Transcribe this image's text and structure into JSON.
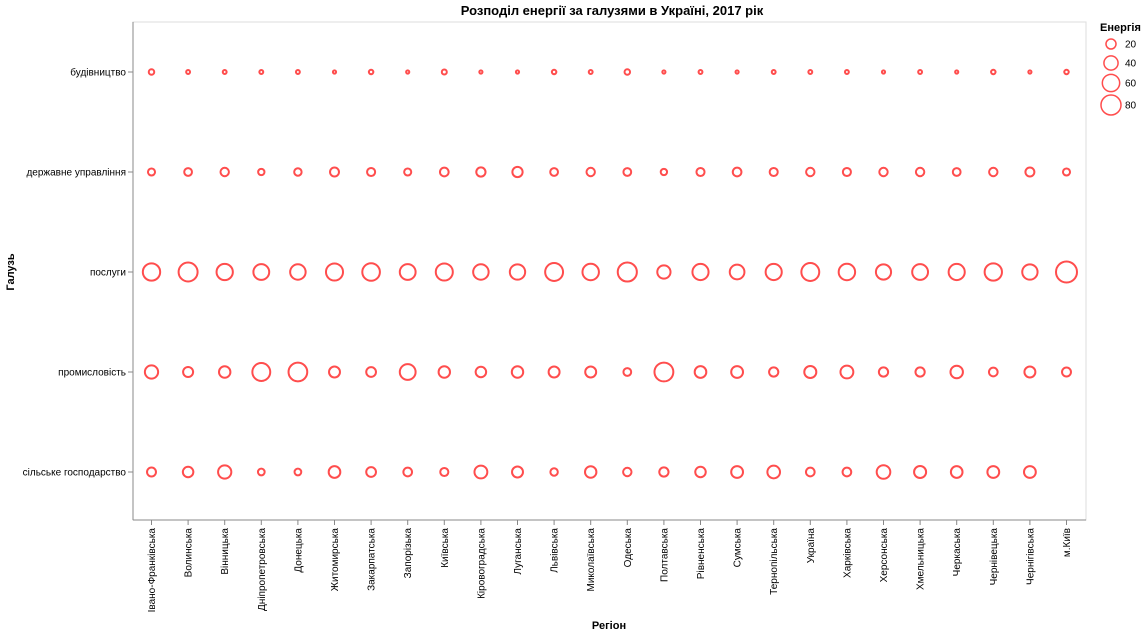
{
  "chart_data": {
    "type": "scatter",
    "title": "Розподіл енергії за галузями в Україні, 2017 рік",
    "xlabel": "Регіон",
    "ylabel": "Галузь",
    "grid": false,
    "legend_position": "top-right",
    "mark_color": "#ff4d4d",
    "x_categories": [
      "Івано-Франківська",
      "Волинська",
      "Вінницька",
      "Дніпропетровська",
      "Донецька",
      "Житомирська",
      "Закарпатська",
      "Запорізька",
      "Київська",
      "Кіровоградська",
      "Луганська",
      "Львівська",
      "Миколаївська",
      "Одеська",
      "Полтавська",
      "Рівненська",
      "Сумська",
      "Тернопільська",
      "Україна",
      "Харківська",
      "Херсонська",
      "Хмельницька",
      "Черкаська",
      "Чернівецька",
      "Чернігівська",
      "м.Київ"
    ],
    "y_categories": [
      "будівництво",
      "державне управління",
      "послуги",
      "промисловість",
      "сільське господарство"
    ],
    "size_legend": {
      "title": "Енергія",
      "values": [
        20,
        40,
        60,
        80
      ]
    },
    "series": [
      {
        "name": "будівництво",
        "values": [
          6,
          3,
          3,
          3,
          3,
          2,
          4,
          2,
          5,
          2,
          2,
          4,
          3,
          6,
          2,
          3,
          2,
          3,
          3,
          3,
          2,
          3,
          2,
          4,
          2,
          4
        ]
      },
      {
        "name": "державне управління",
        "values": [
          10,
          12,
          14,
          8,
          11,
          16,
          13,
          10,
          15,
          17,
          21,
          12,
          14,
          12,
          8,
          13,
          15,
          13,
          14,
          13,
          14,
          14,
          12,
          14,
          16,
          10
        ]
      },
      {
        "name": "послуги",
        "values": [
          60,
          72,
          53,
          50,
          48,
          58,
          62,
          50,
          58,
          48,
          47,
          64,
          54,
          73,
          35,
          52,
          43,
          52,
          64,
          54,
          46,
          50,
          52,
          60,
          47,
          88
        ]
      },
      {
        "name": "промисловість",
        "values": [
          35,
          20,
          26,
          64,
          70,
          24,
          19,
          50,
          26,
          22,
          26,
          24,
          24,
          12,
          71,
          27,
          28,
          17,
          29,
          33,
          17,
          17,
          31,
          15,
          24,
          16
        ]
      },
      {
        "name": "сільське господарство",
        "values": [
          16,
          22,
          35,
          9,
          9,
          27,
          19,
          15,
          13,
          33,
          24,
          11,
          26,
          14,
          17,
          22,
          28,
          32,
          15,
          15,
          37,
          29,
          27,
          28,
          28,
          null
        ]
      }
    ]
  }
}
